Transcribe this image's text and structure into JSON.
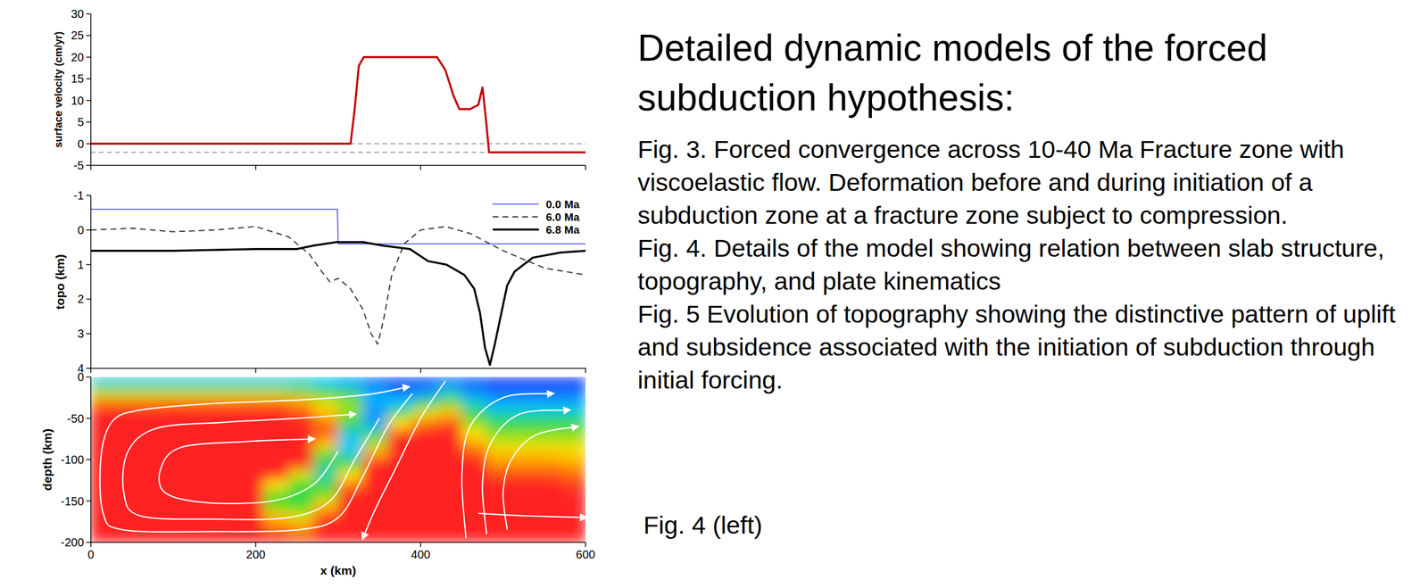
{
  "chart_data": [
    {
      "type": "line",
      "ylabel": "surface velocity (cm/yr)",
      "xlim": [
        0,
        600
      ],
      "xticks": [
        0,
        200,
        400,
        600
      ],
      "ylim": [
        -5,
        30
      ],
      "yticks": [
        -5,
        0,
        5,
        10,
        15,
        20,
        25,
        30
      ],
      "tick_labels": "y",
      "hlines": [
        0,
        -2
      ],
      "x": [
        0,
        300,
        315,
        320,
        325,
        331,
        380,
        420,
        430,
        440,
        447,
        460,
        470,
        475,
        479,
        483,
        490,
        540,
        600
      ],
      "series": [
        {
          "color": "#c00000",
          "line_style": "thick",
          "values": [
            0,
            0,
            0,
            8,
            18,
            20,
            20,
            20,
            17,
            11,
            8,
            8,
            9,
            13,
            6,
            -2,
            -2,
            -2,
            -2
          ]
        }
      ]
    },
    {
      "type": "line",
      "ylabel": "topo (km)",
      "xlim": [
        0,
        600
      ],
      "xticks": [
        0,
        200,
        400,
        600
      ],
      "ylim": [
        4,
        -1
      ],
      "yticks": [
        -1,
        0,
        1,
        2,
        3,
        4
      ],
      "tick_labels": "y",
      "legend": "upper right",
      "series": [
        {
          "name": "0.0 Ma",
          "color": "#3a3aff",
          "line_style": "thin",
          "x": [
            0,
            299,
            300,
            600
          ],
          "values": [
            -0.6,
            -0.6,
            0.4,
            0.4
          ]
        },
        {
          "name": "6.0 Ma",
          "color": "#333333",
          "line_style": "dashed",
          "x": [
            0,
            50,
            100,
            150,
            200,
            240,
            265,
            280,
            290,
            300,
            315,
            330,
            340,
            348,
            355,
            365,
            380,
            400,
            430,
            460,
            500,
            550,
            600
          ],
          "values": [
            0.0,
            -0.05,
            0.05,
            0.0,
            -0.1,
            0.2,
            0.7,
            1.2,
            1.5,
            1.4,
            1.7,
            2.3,
            3.0,
            3.3,
            2.6,
            1.3,
            0.4,
            0.0,
            -0.1,
            0.1,
            0.6,
            1.1,
            1.3
          ]
        },
        {
          "name": "6.8 Ma",
          "color": "#000000",
          "line_style": "thick",
          "x": [
            0,
            100,
            200,
            250,
            270,
            298,
            330,
            354,
            387,
            409,
            431,
            453,
            465,
            472,
            478,
            484,
            490,
            497,
            505,
            514,
            536,
            570,
            600
          ],
          "values": [
            0.6,
            0.6,
            0.55,
            0.55,
            0.45,
            0.35,
            0.35,
            0.45,
            0.55,
            0.9,
            1.0,
            1.3,
            1.7,
            2.4,
            3.4,
            3.9,
            3.3,
            2.5,
            1.6,
            1.2,
            0.8,
            0.65,
            0.6
          ]
        }
      ]
    },
    {
      "type": "heatmap",
      "xlabel": "x (km)",
      "ylabel": "depth (km)",
      "xlim": [
        0,
        600
      ],
      "xticks": [
        0,
        200,
        400,
        600
      ],
      "ylim": [
        -200,
        0
      ],
      "yticks": [
        0,
        -50,
        -100,
        -150,
        -200
      ],
      "zlim": [
        0,
        1
      ],
      "cells": [
        [
          0.3,
          0.3,
          0.3,
          0.3,
          0.3,
          0.3,
          0.3,
          0.3,
          0.3,
          0.25,
          0.2,
          0.1,
          0.05,
          0.05,
          0.1,
          0.05,
          0.02,
          0.02,
          0.02,
          0.02
        ],
        [
          0.65,
          0.65,
          0.65,
          0.65,
          0.65,
          0.65,
          0.65,
          0.65,
          0.6,
          0.5,
          0.4,
          0.2,
          0.1,
          0.15,
          0.3,
          0.15,
          0.08,
          0.08,
          0.08,
          0.08
        ],
        [
          0.9,
          0.9,
          0.9,
          0.9,
          0.9,
          0.9,
          0.9,
          0.9,
          0.85,
          0.7,
          0.6,
          0.2,
          0.25,
          0.4,
          0.55,
          0.3,
          0.2,
          0.2,
          0.2,
          0.2
        ],
        [
          1,
          1,
          1,
          1,
          1,
          1,
          1,
          1,
          0.95,
          0.8,
          0.6,
          0.15,
          0.45,
          0.7,
          0.8,
          0.45,
          0.32,
          0.32,
          0.32,
          0.32
        ],
        [
          1,
          1,
          1,
          1,
          1,
          1,
          1,
          1,
          1,
          0.9,
          0.45,
          0.2,
          0.75,
          0.9,
          0.95,
          0.6,
          0.45,
          0.45,
          0.45,
          0.45
        ],
        [
          1,
          1,
          1,
          1,
          1,
          1,
          1,
          1,
          1,
          0.95,
          0.3,
          0.4,
          0.95,
          1,
          1,
          0.75,
          0.58,
          0.58,
          0.58,
          0.58
        ],
        [
          1,
          1,
          1,
          1,
          1,
          1,
          1,
          1,
          1,
          0.8,
          0.25,
          0.65,
          1,
          1,
          1,
          0.85,
          0.7,
          0.7,
          0.7,
          0.7
        ],
        [
          1,
          1,
          1,
          1,
          1,
          1,
          1,
          1,
          1,
          0.55,
          0.3,
          0.85,
          1,
          1,
          1,
          0.95,
          0.8,
          0.8,
          0.8,
          0.78
        ],
        [
          1,
          1,
          1,
          1,
          1,
          1,
          1,
          1,
          1,
          0.4,
          0.5,
          1,
          1,
          1,
          1,
          1,
          0.88,
          0.88,
          0.88,
          0.85
        ],
        [
          1,
          1,
          1,
          1,
          1,
          1,
          1,
          1,
          0.7,
          0.35,
          0.75,
          1,
          1,
          1,
          1,
          1,
          0.95,
          0.95,
          0.95,
          0.92
        ],
        [
          1,
          1,
          1,
          1,
          1,
          1,
          1,
          0.75,
          0.5,
          0.45,
          0.9,
          1,
          1,
          1,
          1,
          1,
          1,
          1,
          1,
          0.97
        ],
        [
          1,
          1,
          1,
          1,
          1,
          1,
          1,
          0.5,
          0.45,
          0.6,
          1,
          1,
          1,
          1,
          1,
          1,
          1,
          1,
          1,
          1
        ],
        [
          1,
          1,
          1,
          1,
          1,
          1,
          1,
          0.55,
          0.5,
          0.8,
          1,
          1,
          1,
          1,
          1,
          1,
          1,
          1,
          1,
          1
        ],
        [
          1,
          1,
          1,
          1,
          1,
          1,
          1,
          0.8,
          0.7,
          0.95,
          1,
          1,
          1,
          1,
          1,
          1,
          1,
          1,
          1,
          1
        ],
        [
          1,
          1,
          1,
          1,
          1,
          1,
          1,
          0.9,
          0.85,
          1,
          1,
          1,
          1,
          1,
          1,
          1,
          1,
          1,
          1,
          1
        ],
        [
          1,
          1,
          1,
          1,
          1,
          1,
          1,
          1,
          0.95,
          1,
          1,
          1,
          1,
          1,
          1,
          1,
          1,
          1,
          1,
          1
        ]
      ],
      "streamlines": [
        {
          "x": [
            390,
            360,
            330,
            300,
            250,
            150,
            40,
            15,
            12,
            25,
            60,
            150,
            250,
            330,
            385
          ],
          "y": [
            -20,
            -60,
            -120,
            -170,
            -185,
            -187,
            -185,
            -165,
            -100,
            -55,
            -40,
            -32,
            -28,
            -22,
            -12
          ]
        },
        {
          "x": [
            350,
            320,
            290,
            240,
            150,
            60,
            40,
            45,
            80,
            160,
            250,
            320
          ],
          "y": [
            -50,
            -100,
            -150,
            -170,
            -172,
            -168,
            -140,
            -90,
            -62,
            -55,
            -50,
            -45
          ]
        },
        {
          "x": [
            300,
            270,
            220,
            140,
            90,
            85,
            110,
            190,
            270
          ],
          "y": [
            -90,
            -130,
            -150,
            -152,
            -140,
            -110,
            -85,
            -78,
            -75
          ]
        },
        {
          "x": [
            430,
            400,
            370,
            345,
            330
          ],
          "y": [
            -5,
            -50,
            -110,
            -160,
            -195
          ]
        },
        {
          "x": [
            455,
            450,
            460,
            500,
            560
          ],
          "y": [
            -195,
            -120,
            -60,
            -25,
            -20
          ]
        },
        {
          "x": [
            480,
            475,
            485,
            520,
            580
          ],
          "y": [
            -190,
            -130,
            -80,
            -45,
            -40
          ]
        },
        {
          "x": [
            505,
            500,
            510,
            540,
            590
          ],
          "y": [
            -185,
            -140,
            -100,
            -70,
            -60
          ]
        },
        {
          "x": [
            470,
            530,
            600
          ],
          "y": [
            -165,
            -168,
            -170
          ]
        }
      ]
    }
  ],
  "slide": {
    "title": "Detailed dynamic models of the forced subduction hypothesis:",
    "paragraphs": [
      "Fig. 3. Forced convergence  across 10-40 Ma Fracture zone with viscoelastic flow. Deformation before and during initiation of a subduction zone at a fracture zone subject to compression.",
      "Fig. 4. Details of the model showing relation between slab structure, topography, and plate kinematics",
      "Fig. 5 Evolution of topography showing the distinctive pattern of uplift and subsidence associated with the initiation of subduction through initial forcing."
    ],
    "caption": "Fig. 4 (left)"
  }
}
